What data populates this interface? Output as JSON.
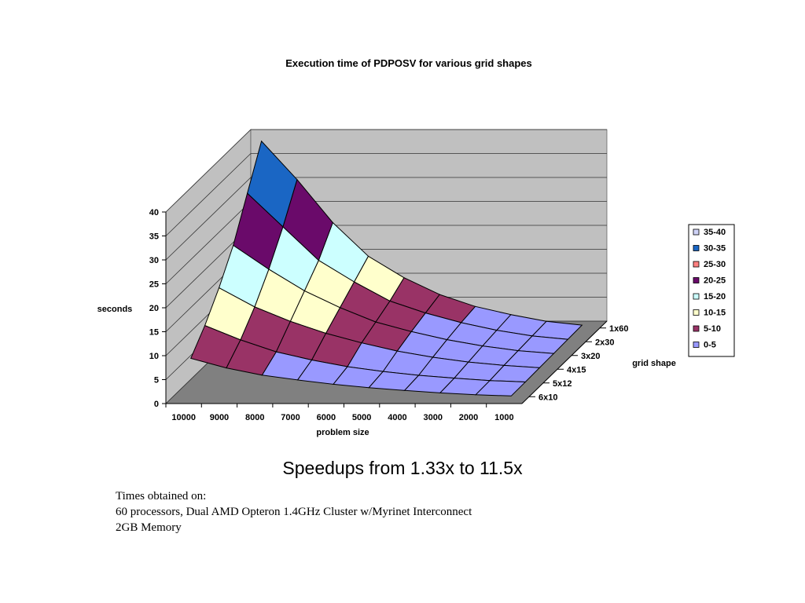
{
  "chart_data": {
    "type": "surface",
    "title": "Execution time of PDPOSV for various grid shapes",
    "xlabel": "problem size",
    "ylabel": "grid shape",
    "zlabel": "seconds",
    "x": [
      "10000",
      "9000",
      "8000",
      "7000",
      "6000",
      "5000",
      "4000",
      "3000",
      "2000",
      "1000"
    ],
    "y": [
      "6x10",
      "5x12",
      "4x15",
      "3x20",
      "2x30",
      "1x60"
    ],
    "zlim": [
      0,
      40
    ],
    "zticks": [
      "0",
      "5",
      "10",
      "15",
      "20",
      "25",
      "30",
      "35",
      "40"
    ],
    "legend_position": "right",
    "bands": [
      {
        "label": "35-40",
        "min": 35,
        "max": 40,
        "color": "#cfd3f7"
      },
      {
        "label": "30-35",
        "min": 30,
        "max": 35,
        "color": "#1a66c4"
      },
      {
        "label": "25-30",
        "min": 25,
        "max": 30,
        "color": "#ff8080"
      },
      {
        "label": "20-25",
        "min": 20,
        "max": 25,
        "color": "#6a0a6a"
      },
      {
        "label": "15-20",
        "min": 15,
        "max": 20,
        "color": "#ccffff"
      },
      {
        "label": "10-15",
        "min": 10,
        "max": 15,
        "color": "#ffffcc"
      },
      {
        "label": "5-10",
        "min": 5,
        "max": 10,
        "color": "#993366"
      },
      {
        "label": "0-5",
        "min": 0,
        "max": 5,
        "color": "#9999ff"
      }
    ],
    "values": [
      [
        8.0,
        6.0,
        4.5,
        3.5,
        2.6,
        1.9,
        1.3,
        0.8,
        0.4,
        0.15
      ],
      [
        12.0,
        9.0,
        6.5,
        4.8,
        3.4,
        2.4,
        1.6,
        1.0,
        0.5,
        0.2
      ],
      [
        17.0,
        13.0,
        10.0,
        7.5,
        5.5,
        3.8,
        2.5,
        1.5,
        0.8,
        0.3
      ],
      [
        23.0,
        18.0,
        13.5,
        10.0,
        7.0,
        5.0,
        3.3,
        2.0,
        1.0,
        0.4
      ],
      [
        31.0,
        24.0,
        17.0,
        12.5,
        8.5,
        6.0,
        4.0,
        2.4,
        1.2,
        0.5
      ],
      [
        39.0,
        31.0,
        22.0,
        15.0,
        10.5,
        7.0,
        4.5,
        2.8,
        1.4,
        0.6
      ]
    ]
  },
  "headline": "Speedups from 1.33x to 11.5x",
  "notes": [
    "Times obtained on:",
    "60 processors, Dual AMD Opteron 1.4GHz Cluster w/Myrinet Interconnect",
    "2GB Memory"
  ],
  "colors": {
    "wall": "#c0c0c0",
    "floor": "#808080",
    "surface_line": "#000000"
  }
}
